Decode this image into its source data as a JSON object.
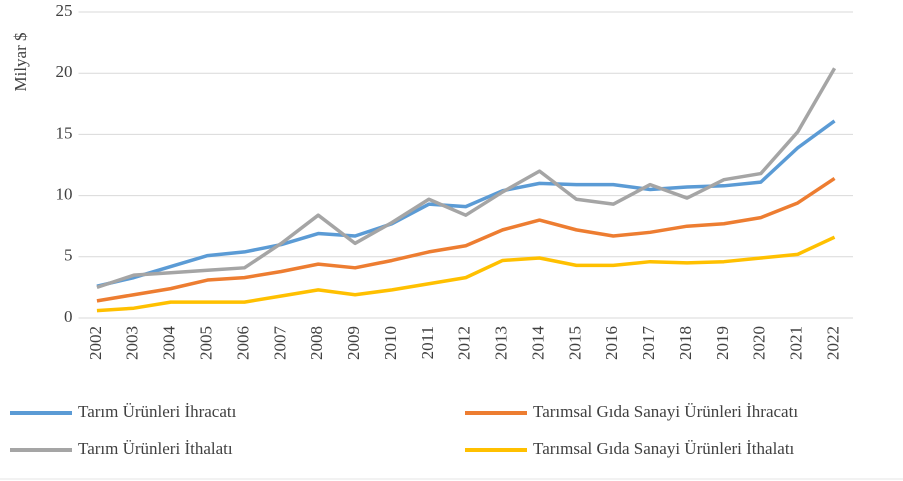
{
  "chart_data": {
    "type": "line",
    "y_label": "Milyar $",
    "categories": [
      "2002",
      "2003",
      "2004",
      "2005",
      "2006",
      "2007",
      "2008",
      "2009",
      "2010",
      "2011",
      "2012",
      "2013",
      "2014",
      "2015",
      "2016",
      "2017",
      "2018",
      "2019",
      "2020",
      "2021",
      "2022"
    ],
    "series": [
      {
        "name": "Tarım Ürünleri İhracatı",
        "color": "#5b9bd5",
        "values": [
          2.6,
          3.3,
          4.2,
          5.1,
          5.4,
          6.0,
          6.9,
          6.7,
          7.7,
          9.3,
          9.1,
          10.4,
          11.0,
          10.9,
          10.9,
          10.5,
          10.7,
          10.8,
          11.1,
          13.9,
          16.1
        ]
      },
      {
        "name": "Tarımsal Gıda Sanayi Ürünleri İhracatı",
        "color": "#ed7d31",
        "values": [
          1.4,
          1.9,
          2.4,
          3.1,
          3.3,
          3.8,
          4.4,
          4.1,
          4.7,
          5.4,
          5.9,
          7.2,
          8.0,
          7.2,
          6.7,
          7.0,
          7.5,
          7.7,
          8.2,
          9.4,
          11.4
        ]
      },
      {
        "name": "Tarım Ürünleri İthalatı",
        "color": "#a5a5a5",
        "values": [
          2.5,
          3.5,
          3.7,
          3.9,
          4.1,
          6.1,
          8.4,
          6.1,
          7.8,
          9.7,
          8.4,
          10.3,
          12.0,
          9.7,
          9.3,
          10.9,
          9.8,
          11.3,
          11.8,
          15.2,
          20.4
        ]
      },
      {
        "name": "Tarımsal Gıda Sanayi Ürünleri İthalatı",
        "color": "#ffc000",
        "values": [
          0.6,
          0.8,
          1.3,
          1.3,
          1.3,
          1.8,
          2.3,
          1.9,
          2.3,
          2.8,
          3.3,
          4.7,
          4.9,
          4.3,
          4.3,
          4.6,
          4.5,
          4.6,
          4.9,
          5.2,
          6.6
        ]
      }
    ],
    "ylim": [
      0,
      25
    ],
    "yticks": [
      0,
      5,
      10,
      15,
      20,
      25
    ],
    "grid": true,
    "legend": "bottom"
  }
}
